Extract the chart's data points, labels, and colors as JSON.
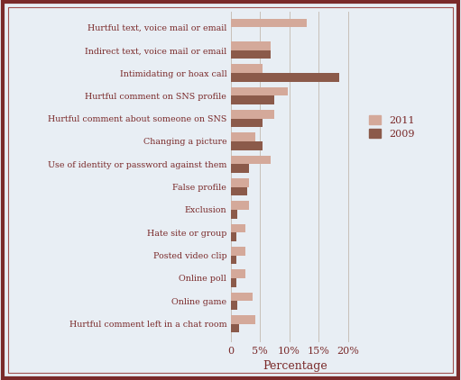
{
  "categories": [
    "Hurtful text, voice mail or email",
    "Indirect text, voice mail or email",
    "Intimidating or hoax call",
    "Hurtful comment on SNS profile",
    "Hurtful comment about someone on SNS",
    "Changing a picture",
    "Use of identity or password against them",
    "False profile",
    "Exclusion",
    "Hate site or group",
    "Posted video clip",
    "Online poll",
    "Online game",
    "Hurtful comment left in a chat room"
  ],
  "values_2011": [
    13.0,
    6.8,
    5.5,
    9.8,
    7.5,
    4.2,
    6.8,
    3.2,
    3.2,
    2.5,
    2.5,
    2.5,
    3.8,
    4.2
  ],
  "values_2009": [
    0.0,
    6.8,
    18.5,
    7.5,
    5.5,
    5.5,
    3.2,
    2.8,
    1.2,
    1.0,
    1.0,
    1.0,
    1.2,
    1.5
  ],
  "color_2011": "#d4a99a",
  "color_2009": "#8b5a4a",
  "background_color": "#e8eef4",
  "border_color_outer": "#7a2a2a",
  "border_color_inner": "#a05050",
  "text_color": "#7a2a2a",
  "xlabel": "Percentage",
  "legend_2011": "2011",
  "legend_2009": "2009",
  "xlim": [
    0,
    22
  ],
  "xticks": [
    0,
    5,
    10,
    15,
    20
  ],
  "xticklabels": [
    "0",
    "5%",
    "10%",
    "15%",
    "20%"
  ],
  "grid_color": "#c8c0b8"
}
